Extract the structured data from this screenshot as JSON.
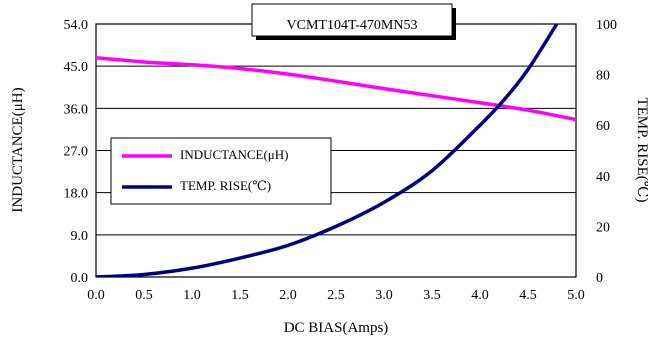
{
  "chart_data": {
    "type": "line",
    "title": "VCMT104T-470MN53",
    "xlabel": "DC BIAS(Amps)",
    "ylabel_left": "INDUCTANCE(μH)",
    "ylabel_right": "TEMP. RISE(℃)",
    "xlim": [
      0,
      5
    ],
    "ylim_left": [
      0,
      54
    ],
    "ylim_right": [
      0,
      100
    ],
    "x_ticks": [
      "0.0",
      "0.5",
      "1.0",
      "1.5",
      "2.0",
      "2.5",
      "3.0",
      "3.5",
      "4.0",
      "4.5",
      "5.0"
    ],
    "y_left_ticks": [
      "0.0",
      "9.0",
      "18.0",
      "27.0",
      "36.0",
      "45.0",
      "54.0"
    ],
    "y_right_ticks": [
      "0",
      "20",
      "40",
      "60",
      "80",
      "100"
    ],
    "grid": "horizontal",
    "legend_position": "left-middle",
    "series": [
      {
        "name": "INDUCTANCE(μH)",
        "axis": "left",
        "color": "#ff00ff",
        "x": [
          0,
          0.5,
          1.0,
          1.5,
          2.0,
          2.5,
          3.0,
          3.5,
          4.0,
          4.5,
          5.0
        ],
        "y": [
          46.8,
          45.9,
          45.3,
          44.5,
          43.3,
          41.8,
          40.2,
          38.7,
          37.2,
          35.6,
          33.6
        ]
      },
      {
        "name": "TEMP. RISE(℃)",
        "axis": "right",
        "color": "#000080",
        "x": [
          0,
          0.5,
          1.0,
          1.5,
          2.0,
          2.5,
          3.0,
          3.5,
          4.0,
          4.25,
          4.5,
          4.8
        ],
        "y": [
          0,
          1,
          3.5,
          7.5,
          12.5,
          20,
          29.5,
          42,
          60,
          70,
          82,
          100
        ]
      }
    ]
  }
}
